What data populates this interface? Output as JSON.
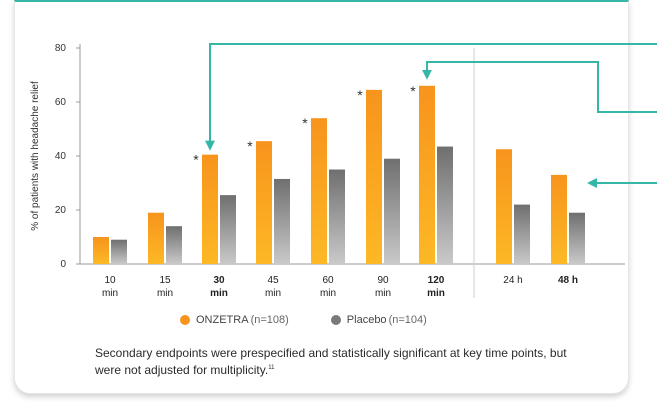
{
  "colors": {
    "onzetra": "#f7941d",
    "placebo": "#7a7a7a",
    "teal": "#35b7a7",
    "axis": "#555555"
  },
  "chart_data": {
    "type": "bar",
    "title": "",
    "ylabel": "% of patients with headache relief",
    "xlabel": "",
    "ylim": [
      0,
      80
    ],
    "yticks": [
      0,
      20,
      40,
      60,
      80
    ],
    "grid": false,
    "legend_position": "bottom",
    "categories": [
      {
        "line1": "10",
        "line2": "min",
        "bold": false
      },
      {
        "line1": "15",
        "line2": "min",
        "bold": false
      },
      {
        "line1": "30",
        "line2": "min",
        "bold": true
      },
      {
        "line1": "45",
        "line2": "min",
        "bold": false
      },
      {
        "line1": "60",
        "line2": "min",
        "bold": false
      },
      {
        "line1": "90",
        "line2": "min",
        "bold": false
      },
      {
        "line1": "120",
        "line2": "min",
        "bold": true
      },
      {
        "line1": "24 h",
        "line2": "",
        "bold": false
      },
      {
        "line1": "48 h",
        "line2": "",
        "bold": true
      }
    ],
    "series": [
      {
        "name": "ONZETRA",
        "values": [
          10,
          19,
          40.5,
          45.5,
          54,
          64.5,
          66,
          42.5,
          33
        ]
      },
      {
        "name": "Placebo",
        "values": [
          9,
          14,
          25.5,
          31.5,
          35,
          39,
          43.5,
          22,
          19
        ]
      }
    ],
    "significance_marks": [
      "",
      "",
      "*",
      "*",
      "*",
      "*",
      "*",
      "",
      ""
    ],
    "highlight_arrows": [
      2,
      6,
      8
    ]
  },
  "legend": {
    "onzetra_name": "ONZETRA",
    "onzetra_n": "(n=108)",
    "placebo_name": "Placebo",
    "placebo_n": "(n=104)"
  },
  "footnote": {
    "text": "Secondary endpoints were prespecified and statistically significant at key time points, but were not adjusted for multiplicity.",
    "ref": "11"
  }
}
